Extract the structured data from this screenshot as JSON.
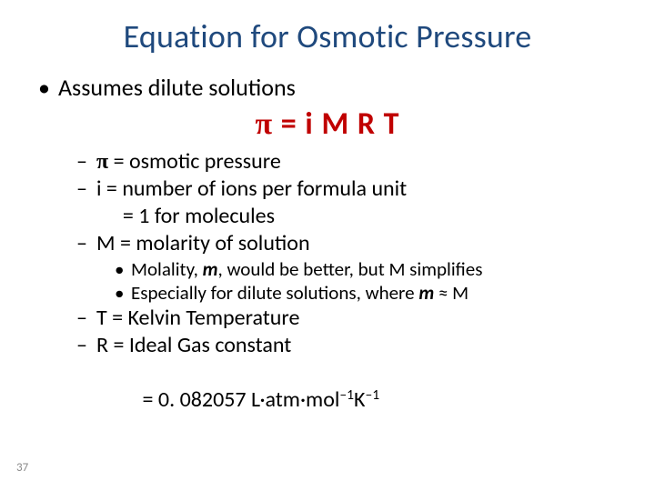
{
  "title": "Equation for Osmotic Pressure",
  "l1_assumes": "Assumes dilute solutions",
  "equation_html": "π = i M R T",
  "pi_def_prefix": "π",
  "pi_def_rest": " = osmotic pressure",
  "i_def": "i = number of ions per formula unit",
  "i_def_cont": "  = 1 for molecules",
  "m_def": "M = molarity of solution",
  "molality_note_a": "Molality, ",
  "molality_note_b": ", would be better, but M simplifies",
  "molality_m": "m",
  "dilute_note_a": "Especially for dilute solutions, where ",
  "dilute_note_b": " ≈ M",
  "t_def": "T = Kelvin Temperature",
  "r_def": "R = Ideal Gas constant",
  "r_val_prefix": "  = 0. 082057 L·atm·mol",
  "r_exp1": "–1",
  "r_unit_k": "K",
  "r_exp2": "–1",
  "page_number": "37",
  "colors": {
    "title": "#1f497d",
    "equation": "#c00000",
    "body": "#000000",
    "pagenum": "#8a8a8a",
    "background": "#ffffff"
  },
  "fontsizes_pt": {
    "title": 27,
    "equation": 25,
    "l1": 19,
    "l2": 18,
    "l3": 16,
    "pagenum": 10
  }
}
